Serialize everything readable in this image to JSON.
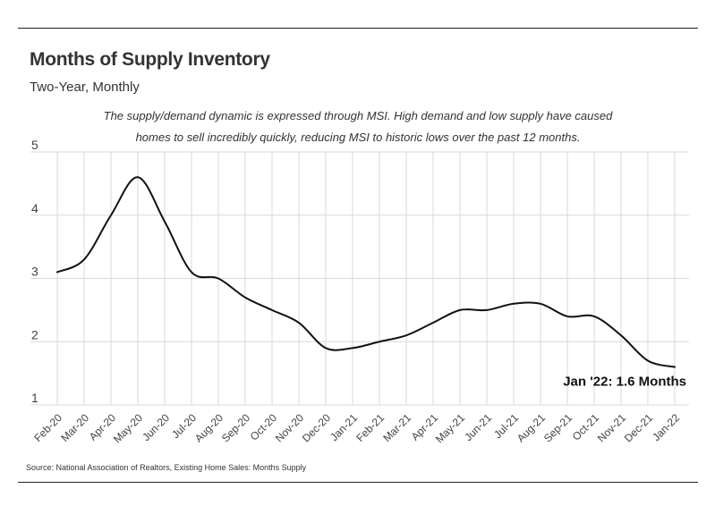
{
  "header": {
    "title": "Months of Supply Inventory",
    "subtitle": "Two-Year, Monthly"
  },
  "note": {
    "line1": "The supply/demand dynamic is expressed through MSI. High demand and low supply have caused",
    "line2": "homes to sell incredibly quickly, reducing MSI to historic lows over the past 12 months."
  },
  "footer": {
    "source": "Source:  National Association of Realtors, Existing Home Sales: Months Supply"
  },
  "colors": {
    "line": "#111111",
    "grid": "#d9d9d9"
  },
  "chart_data": {
    "type": "line",
    "title": "Months of Supply Inventory",
    "subtitle": "Two-Year, Monthly",
    "xlabel": "",
    "ylabel": "",
    "ylim": [
      1,
      5
    ],
    "yticks": [
      1,
      2,
      3,
      4,
      5
    ],
    "grid": true,
    "categories": [
      "Feb-20",
      "Mar-20",
      "Apr-20",
      "May-20",
      "Jun-20",
      "Jul-20",
      "Aug-20",
      "Sep-20",
      "Oct-20",
      "Nov-20",
      "Dec-20",
      "Jan-21",
      "Feb-21",
      "Mar-21",
      "Apr-21",
      "May-21",
      "Jun-21",
      "Jul-21",
      "Aug-21",
      "Sep-21",
      "Oct-21",
      "Nov-21",
      "Dec-21",
      "Jan-22"
    ],
    "series": [
      {
        "name": "Months Supply",
        "values": [
          3.1,
          3.3,
          4.0,
          4.6,
          3.9,
          3.1,
          3.0,
          2.7,
          2.5,
          2.3,
          1.9,
          1.9,
          2.0,
          2.1,
          2.3,
          2.5,
          2.5,
          2.6,
          2.6,
          2.4,
          2.4,
          2.1,
          1.7,
          1.6
        ]
      }
    ],
    "annotation": "Jan '22: 1.6 Months"
  }
}
